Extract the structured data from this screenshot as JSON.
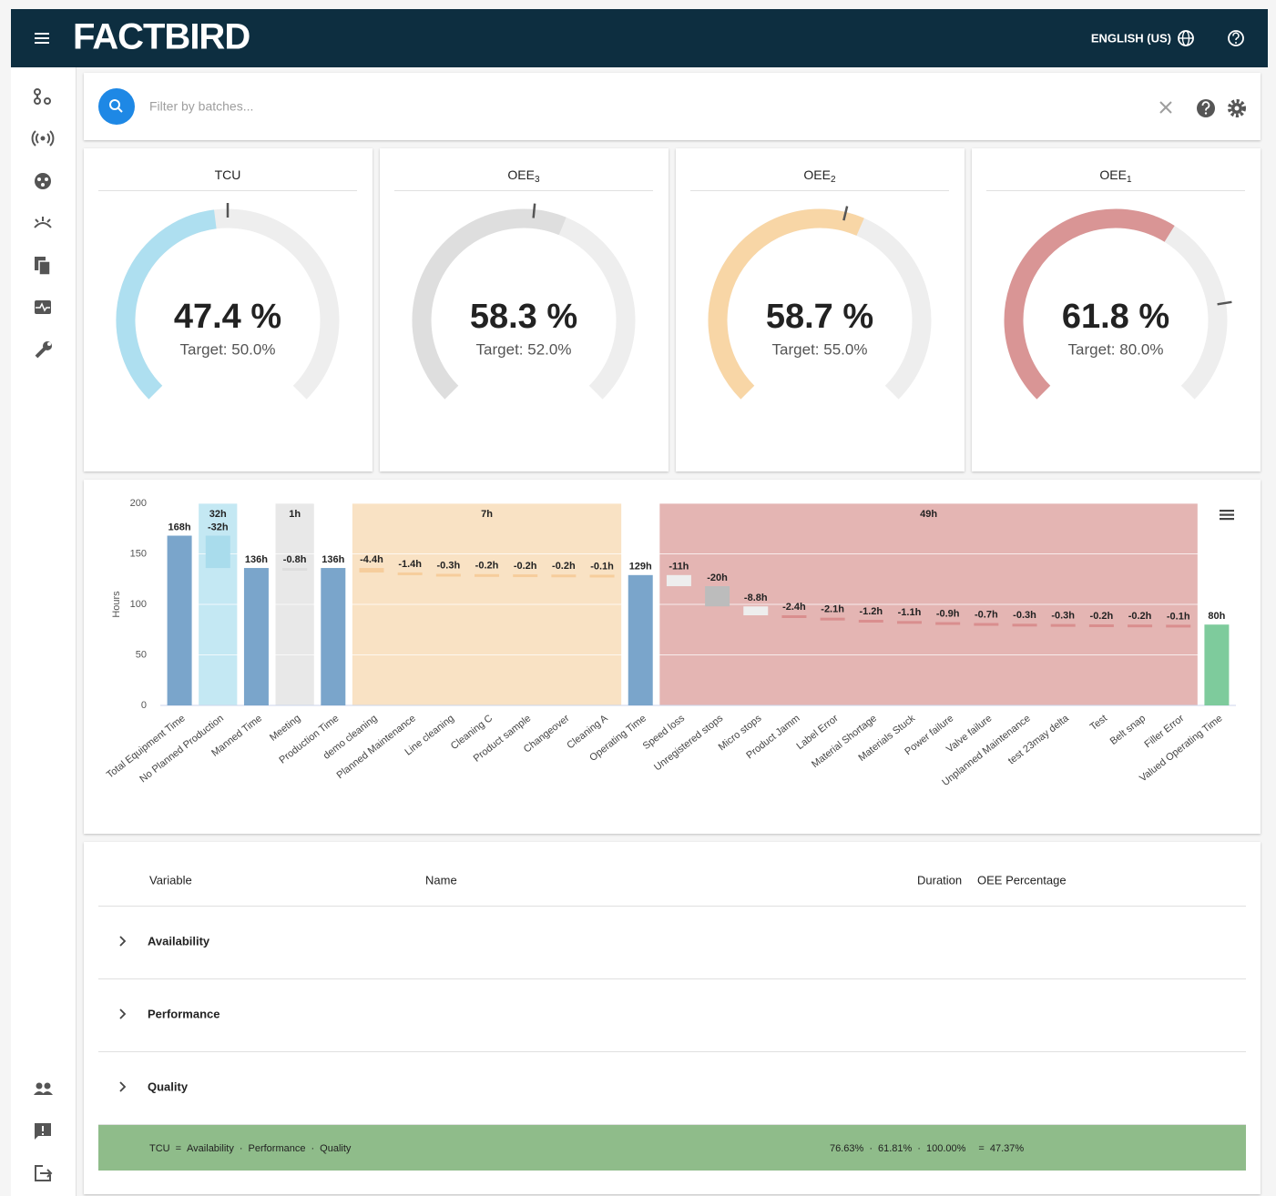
{
  "header": {
    "brand": "FACTBIRD",
    "language": "ENGLISH (US)"
  },
  "filter": {
    "placeholder": "Filter by batches..."
  },
  "gauges": [
    {
      "title": "TCU",
      "value": 47.4,
      "value_label": "47.4 %",
      "target": 50,
      "target_label": "Target: 50.0%",
      "lim": [
        0,
        100
      ],
      "color": "#aedff0"
    },
    {
      "title": "OEE",
      "title_sub": "3",
      "value": 58.3,
      "value_label": "58.3 %",
      "target": 52,
      "target_label": "Target: 52.0%",
      "lim": [
        0,
        100
      ],
      "color": "#dedede"
    },
    {
      "title": "OEE",
      "title_sub": "2",
      "value": 58.7,
      "value_label": "58.7 %",
      "target": 55,
      "target_label": "Target: 55.0%",
      "lim": [
        0,
        100
      ],
      "color": "#f8d6a6"
    },
    {
      "title": "OEE",
      "title_sub": "1",
      "value": 61.8,
      "value_label": "61.8 %",
      "target": 80,
      "target_label": "Target: 80.0%",
      "lim": [
        0,
        100
      ],
      "color": "#d99595"
    }
  ],
  "chart_data": {
    "type": "waterfall",
    "ylabel": "Hours",
    "categories": [
      "Total Equipment Time",
      "No Planned Production",
      "Manned Time",
      "Meeting",
      "Production Time",
      "demo cleaning",
      "Planned Maintenance",
      "Line cleaning",
      "Cleaning C",
      "Product sample",
      "Changeover",
      "Cleaning A",
      "Operating Time",
      "Speed loss",
      "Unregistered stops",
      "Micro stops",
      "Product Jamm",
      "Label Error",
      "Material Shortage",
      "Materials Stuck",
      "Power failure",
      "Valve failure",
      "Unplanned Maintenance",
      "test 23may delta",
      "Test",
      "Belt snap",
      "Filler Error",
      "Valued Operating Time"
    ],
    "values": [
      168,
      -32,
      136,
      -0.8,
      136,
      -4.4,
      -1.4,
      -0.3,
      -0.2,
      -0.2,
      -0.2,
      -0.1,
      129,
      -11,
      -20,
      -8.8,
      -2.4,
      -2.1,
      -1.2,
      -1.1,
      -0.9,
      -0.7,
      -0.3,
      -0.3,
      -0.2,
      -0.2,
      -0.1,
      80
    ],
    "value_labels": [
      "168h",
      "-32h",
      "136h",
      "-0.8h",
      "136h",
      "-4.4h",
      "-1.4h",
      "-0.3h",
      "-0.2h",
      "-0.2h",
      "-0.2h",
      "-0.1h",
      "129h",
      "-11h",
      "-20h",
      "-8.8h",
      "-2.4h",
      "-2.1h",
      "-1.2h",
      "-1.1h",
      "-0.9h",
      "-0.7h",
      "-0.3h",
      "-0.3h",
      "-0.2h",
      "-0.2h",
      "-0.1h",
      "80h"
    ],
    "colors": [
      "#7aa5cb",
      "#a9dcec",
      "#7aa5cb",
      "#dddddd",
      "#7aa5cb",
      "#f6cd9c",
      "#f6cd9c",
      "#f6cd9c",
      "#f6cd9c",
      "#f6cd9c",
      "#f6cd9c",
      "#f6cd9c",
      "#7aa5cb",
      "#eeeeee",
      "#bcbcbc",
      "#eeeeee",
      "#d98e8e",
      "#d98e8e",
      "#d98e8e",
      "#d98e8e",
      "#d98e8e",
      "#d98e8e",
      "#d98e8e",
      "#d98e8e",
      "#d98e8e",
      "#d98e8e",
      "#d98e8e",
      "#7ecb9c"
    ],
    "ylim": [
      0,
      200
    ],
    "yticks": [
      0,
      50,
      100,
      150,
      200
    ],
    "grid": true,
    "bands": [
      {
        "label": "32h",
        "first": "No Planned Production",
        "last": "No Planned Production",
        "color": "#c4e8f3"
      },
      {
        "label": "1h",
        "first": "Meeting",
        "last": "Meeting",
        "color": "#e8e8e8"
      },
      {
        "label": "7h",
        "first": "demo cleaning",
        "last": "Cleaning A",
        "color": "#f9e2c4"
      },
      {
        "label": "49h",
        "first": "Speed loss",
        "last": "Filler Error",
        "color": "#e4b5b3"
      }
    ]
  },
  "table": {
    "columns": [
      "Variable",
      "Name",
      "Duration",
      "OEE Percentage"
    ],
    "rows": [
      "Availability",
      "Performance",
      "Quality"
    ],
    "footer": {
      "lhs": "TCU",
      "equals": "=",
      "times": "·",
      "terms": [
        "Availability",
        "Performance",
        "Quality"
      ],
      "values": [
        "76.63%",
        "61.81%",
        "100.00%"
      ],
      "result": "47.37%"
    }
  }
}
